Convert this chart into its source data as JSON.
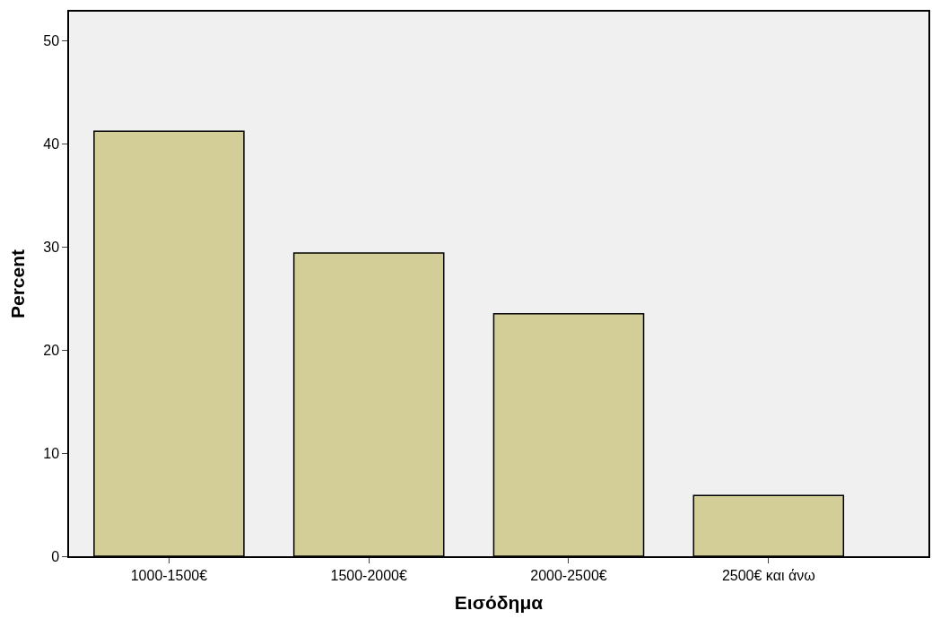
{
  "chart_data": {
    "type": "bar",
    "xlabel": "Εισόδημα",
    "ylabel": "Percent",
    "categories": [
      "1000-1500€",
      "1500-2000€",
      "2000-2500€",
      "2500€ και άνω"
    ],
    "values": [
      41.2,
      29.4,
      23.5,
      5.9
    ],
    "color": "#d3ce97",
    "ylim": [
      0,
      52.8
    ],
    "yticks": [
      0,
      10,
      20,
      30,
      40,
      50
    ],
    "grid": false
  }
}
